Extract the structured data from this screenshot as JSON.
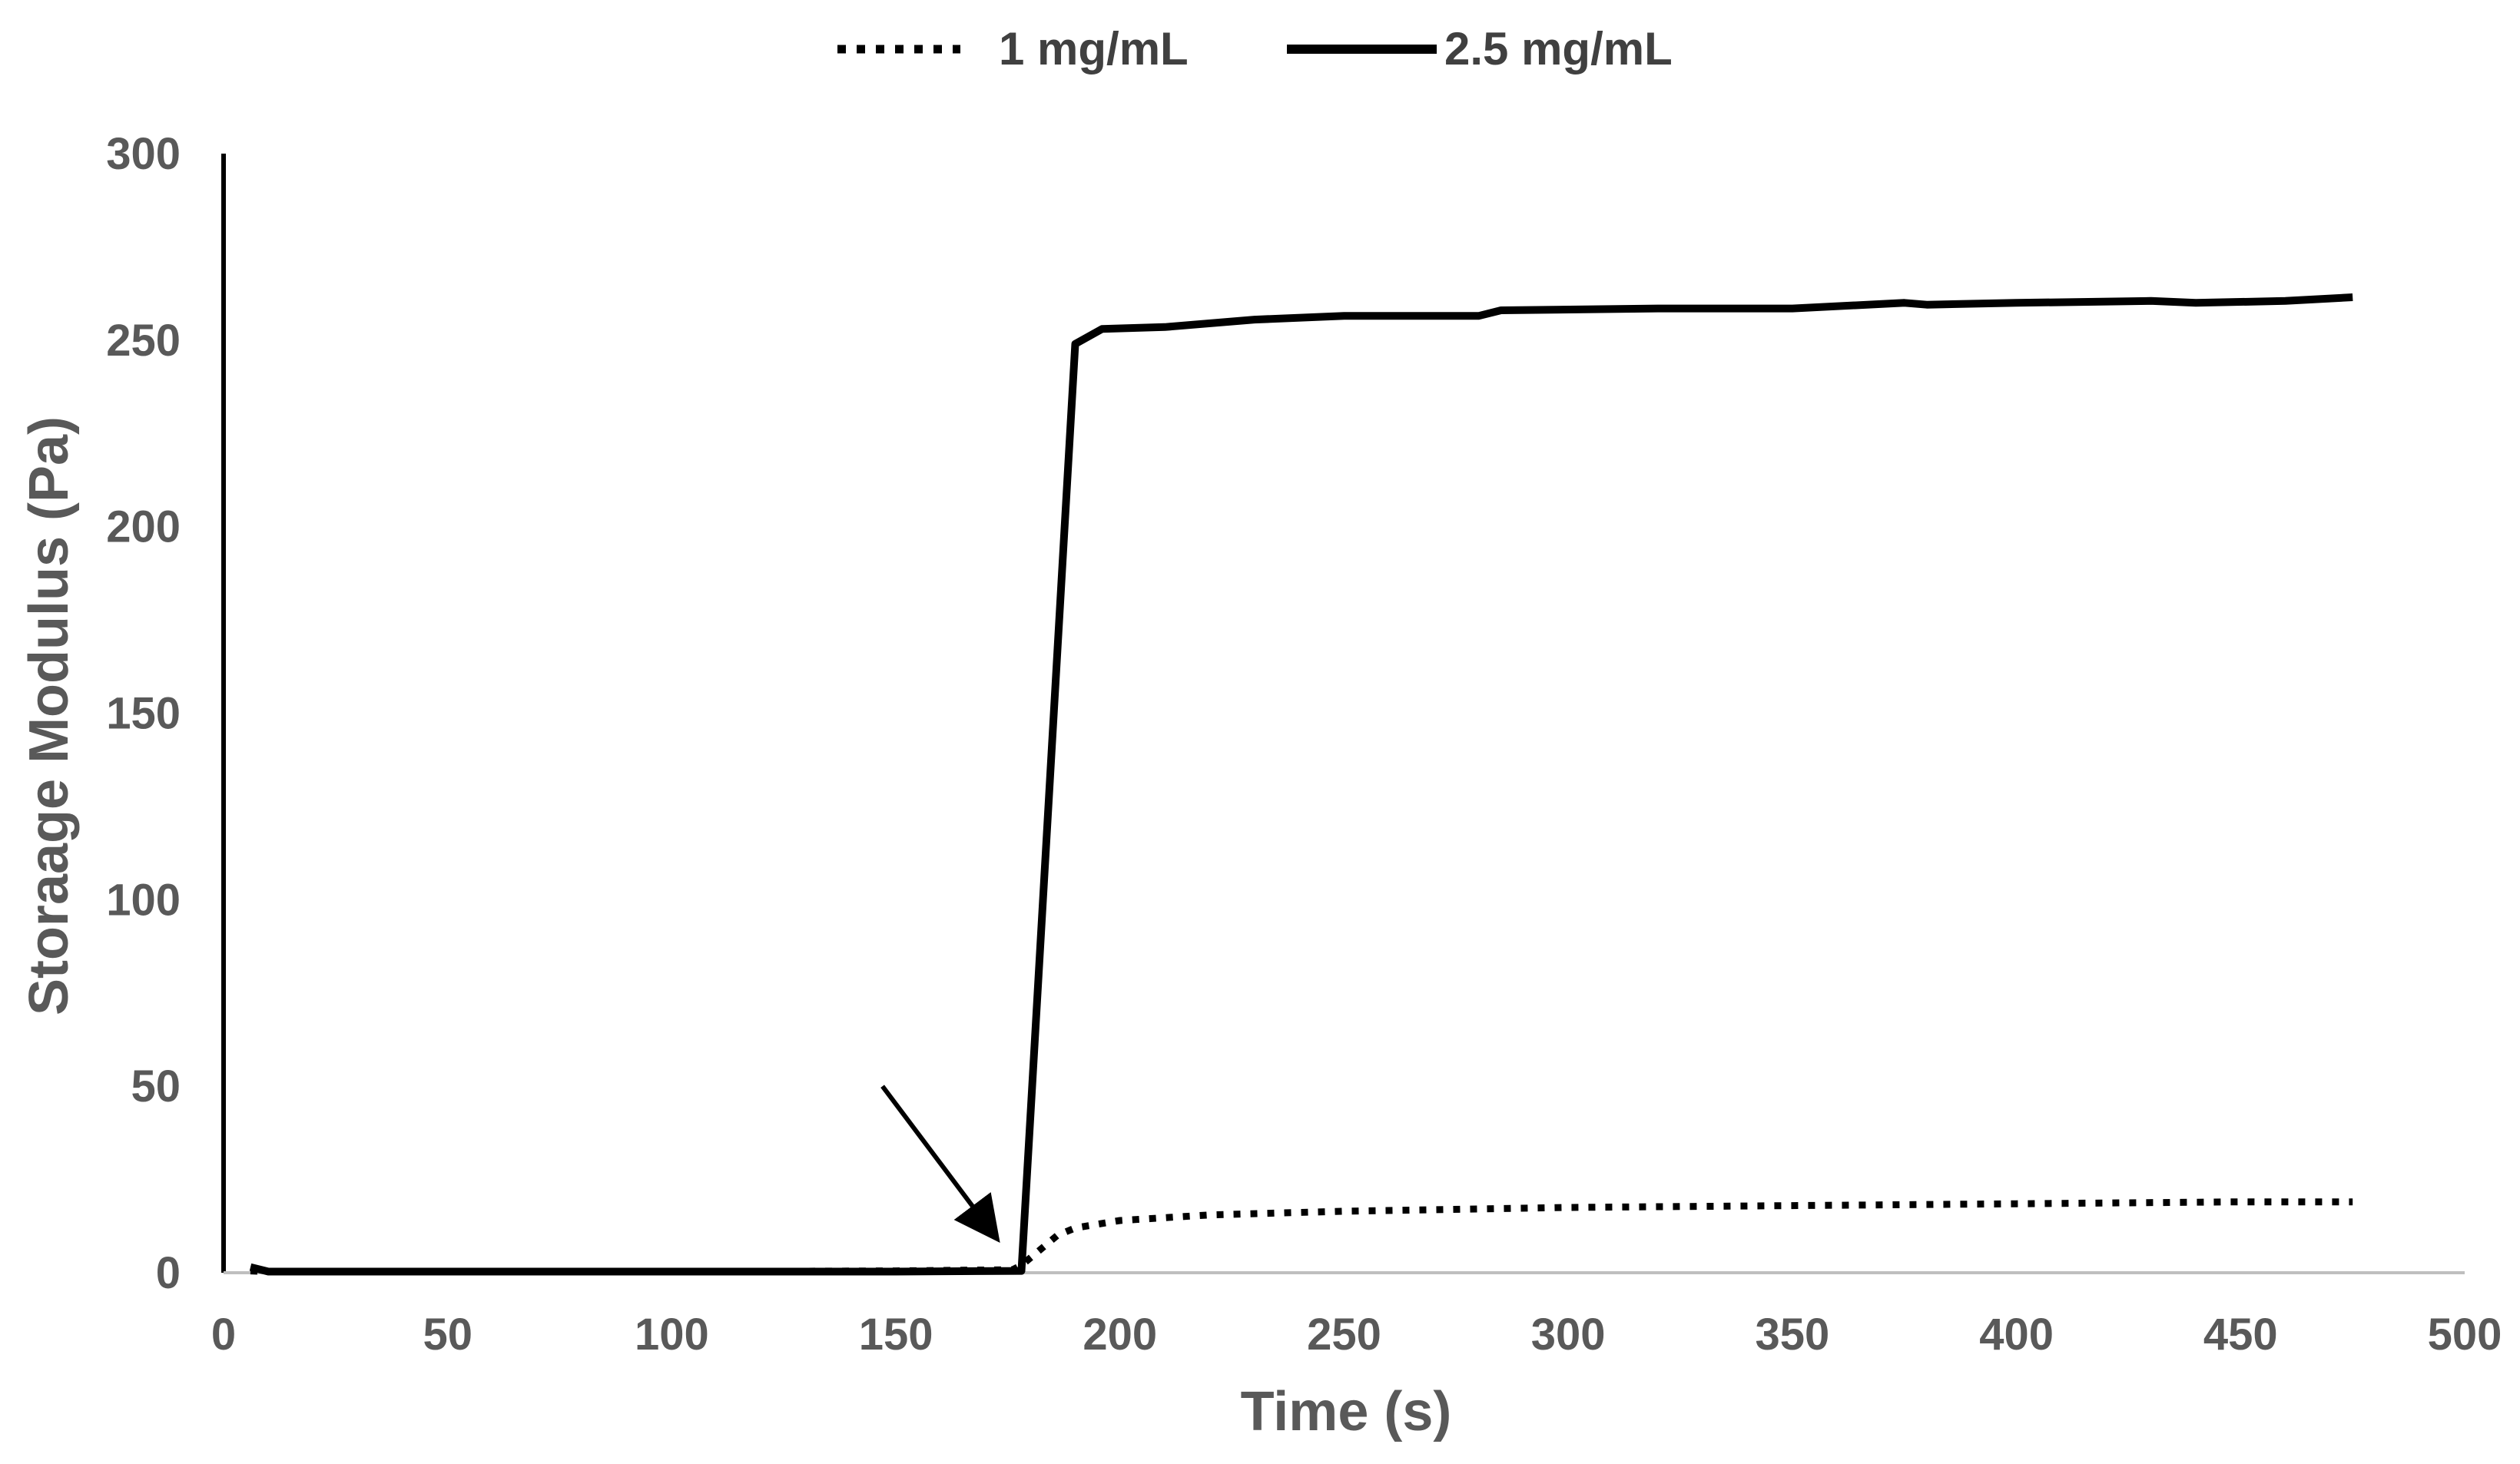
{
  "chart_data": {
    "type": "line",
    "title": "",
    "xlabel": "Time (s)",
    "ylabel": "Storaage Modulus (Pa)",
    "xlim": [
      0,
      500
    ],
    "ylim": [
      0,
      300
    ],
    "xticks": [
      0,
      50,
      100,
      150,
      200,
      250,
      300,
      350,
      400,
      450,
      500
    ],
    "yticks": [
      0,
      50,
      100,
      150,
      200,
      250,
      300
    ],
    "grid": false,
    "legend_position": "top-center",
    "series": [
      {
        "name": "1 mg/mL",
        "style": "dotted",
        "color": "#000000",
        "x": [
          6,
          10,
          50,
          100,
          150,
          176,
          178,
          182,
          186,
          190,
          200,
          220,
          250,
          300,
          350,
          400,
          450,
          475
        ],
        "values": [
          0.5,
          0.3,
          0.3,
          0.3,
          0.5,
          0.8,
          2,
          6,
          10,
          12,
          14,
          15.5,
          16.5,
          17.5,
          18,
          18.5,
          19,
          19
        ]
      },
      {
        "name": "2.5 mg/mL",
        "style": "solid",
        "color": "#000000",
        "x": [
          6,
          10,
          50,
          100,
          150,
          178,
          190,
          196,
          210,
          230,
          250,
          280,
          285,
          320,
          350,
          375,
          380,
          400,
          430,
          440,
          460,
          475
        ],
        "values": [
          1.5,
          0.3,
          0.3,
          0.3,
          0.3,
          0.5,
          249,
          253,
          253.5,
          255.5,
          256.5,
          256.5,
          258,
          258.5,
          258.5,
          260,
          259.5,
          260,
          260.5,
          260,
          260.5,
          261.5
        ]
      }
    ],
    "annotations": [
      {
        "type": "arrow",
        "from": [
          147,
          50
        ],
        "to": [
          172,
          10
        ]
      }
    ]
  }
}
